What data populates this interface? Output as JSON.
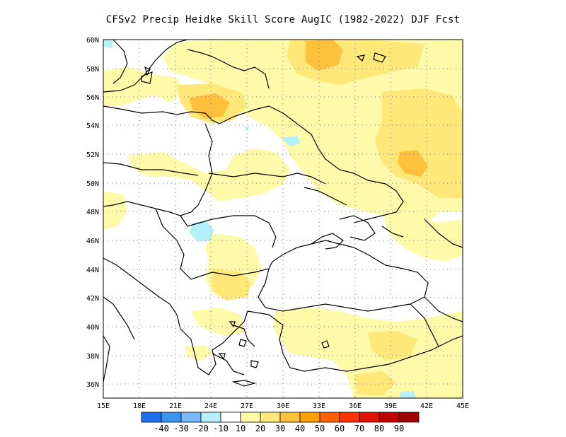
{
  "title": "CFSv2 Precip Heidke Skill Score AugIC (1982-2022) DJF Fcst",
  "lat_labels": [
    "60N",
    "58N",
    "56N",
    "54N",
    "52N",
    "50N",
    "48N",
    "46N",
    "44N",
    "42N",
    "40N",
    "38N",
    "36N"
  ],
  "lon_labels": [
    "15E",
    "18E",
    "21E",
    "24E",
    "27E",
    "30E",
    "33E",
    "36E",
    "39E",
    "42E",
    "45E"
  ],
  "colorbar": {
    "labels": [
      "-40",
      "-30",
      "-20",
      "-10",
      "10",
      "20",
      "30",
      "40",
      "50",
      "60",
      "70",
      "80",
      "90"
    ],
    "colors": [
      "#1e6eeb",
      "#3c96f0",
      "#78b9fa",
      "#b4f0fa",
      "#ffffff",
      "#fffaaa",
      "#ffe878",
      "#ffc03c",
      "#ffa000",
      "#ff6000",
      "#ff3200",
      "#e11400",
      "#c00000",
      "#a50000"
    ]
  }
}
